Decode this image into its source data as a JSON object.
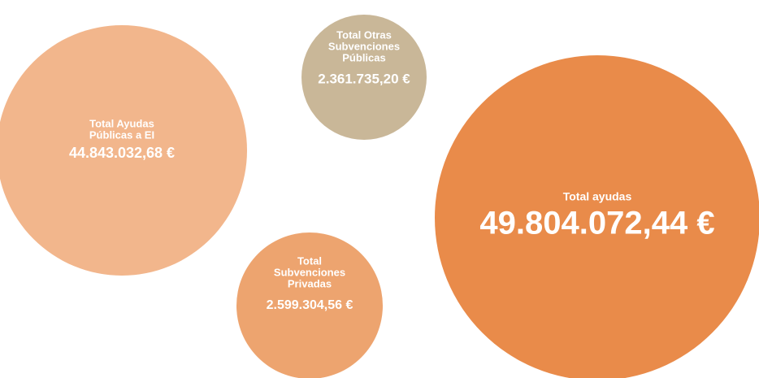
{
  "bubbles": [
    {
      "label": [
        "Total Ayudas",
        "Públicas a EI"
      ],
      "amount": "44.843.032,68 €"
    },
    {
      "label": [
        "Total Otras",
        "Subvenciones",
        "Públicas"
      ],
      "amount": "2.361.735,20 €"
    },
    {
      "label": [
        "Total ayudas"
      ],
      "amount": "49.804.072,44 €"
    },
    {
      "label": [
        "Total",
        "Subvenciones",
        "Privadas"
      ],
      "amount": "2.599.304,56 €"
    }
  ]
}
